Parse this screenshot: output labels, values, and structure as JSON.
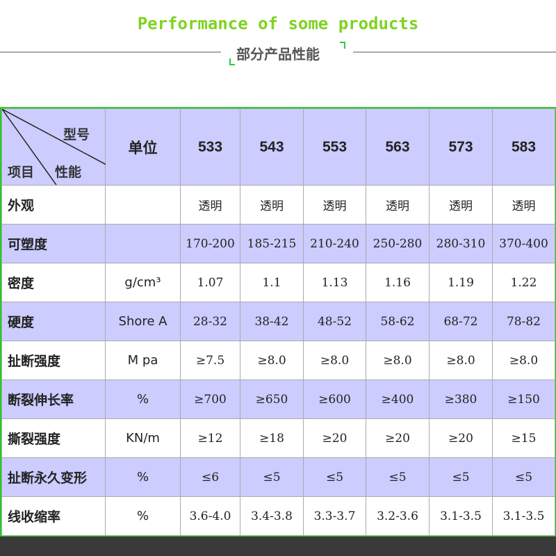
{
  "title": "Performance of some products",
  "subtitle": "部分产品性能",
  "table": {
    "corner": {
      "model": "型号",
      "property": "性能",
      "item": "项目"
    },
    "unit_header": "单位",
    "models": [
      "533",
      "543",
      "553",
      "563",
      "573",
      "583"
    ],
    "rows": [
      {
        "label": "外观",
        "unit": "",
        "values": [
          "透明",
          "透明",
          "透明",
          "透明",
          "透明",
          "透明"
        ]
      },
      {
        "label": "可塑度",
        "unit": "",
        "values": [
          "170-200",
          "185-215",
          "210-240",
          "250-280",
          "280-310",
          "370-400"
        ]
      },
      {
        "label": "密度",
        "unit": "g/cm³",
        "values": [
          "1.07",
          "1.1",
          "1.13",
          "1.16",
          "1.19",
          "1.22"
        ]
      },
      {
        "label": "硬度",
        "unit": "Shore A",
        "values": [
          "28-32",
          "38-42",
          "48-52",
          "58-62",
          "68-72",
          "78-82"
        ]
      },
      {
        "label": "扯断强度",
        "unit": "M pa",
        "values": [
          "≥7.5",
          "≥8.0",
          "≥8.0",
          "≥8.0",
          "≥8.0",
          "≥8.0"
        ]
      },
      {
        "label": "断裂伸长率",
        "unit": "%",
        "values": [
          "≥700",
          "≥650",
          "≥600",
          "≥400",
          "≥380",
          "≥150"
        ]
      },
      {
        "label": "撕裂强度",
        "unit": "KN/m",
        "values": [
          "≥12",
          "≥18",
          "≥20",
          "≥20",
          "≥20",
          "≥15"
        ]
      },
      {
        "label": "扯断永久变形",
        "unit": "%",
        "values": [
          "≤6",
          "≤5",
          "≤5",
          "≤5",
          "≤5",
          "≤5"
        ]
      },
      {
        "label": "线收缩率",
        "unit": "%",
        "values": [
          "3.6-4.0",
          "3.4-3.8",
          "3.3-3.7",
          "3.2-3.6",
          "3.1-3.5",
          "3.1-3.5"
        ]
      }
    ]
  },
  "colors": {
    "title": "#7ed321",
    "border": "#22cc22",
    "row_highlight": "#ccccff"
  }
}
